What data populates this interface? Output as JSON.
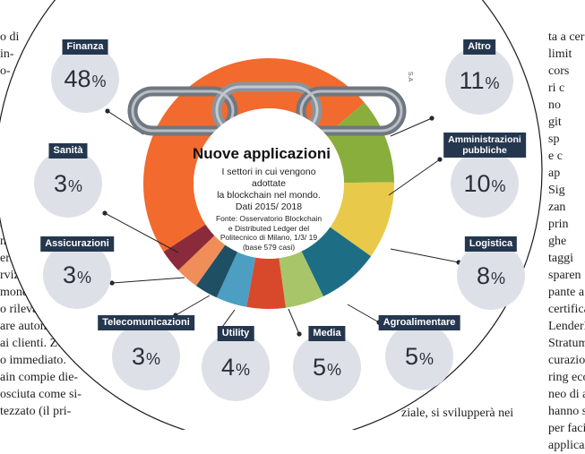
{
  "chart_data": {
    "type": "pie",
    "title": "Nuove applicazioni",
    "subtitle": "I settori in cui vengono adottate la blockchain nel mondo. Dati 2015/ 2018",
    "subtitle_lines": [
      "I settori in cui vengono adottate",
      "la blockchain nel mondo.",
      "Dati 2015/ 2018"
    ],
    "source_lines": [
      "Fonte: Osservatorio Blockchain",
      "e Distributed Ledger del",
      "Politecnico di Milano, 1/3/ 19",
      "(base 579 casi)"
    ],
    "credit": "S.A",
    "slices": [
      {
        "label": "Finanza",
        "value": 48,
        "display": "48",
        "color": "#f26a2e"
      },
      {
        "label": "Altro",
        "value": 11,
        "display": "11",
        "color": "#8aae3c"
      },
      {
        "label": "Amministrazioni pubbliche",
        "label_lines": [
          "Amministrazioni",
          "pubbliche"
        ],
        "value": 10,
        "display": "10",
        "color": "#e8c94a"
      },
      {
        "label": "Logistica",
        "value": 8,
        "display": "8",
        "color": "#1d6e85"
      },
      {
        "label": "Agroalimentare",
        "value": 5,
        "display": "5",
        "color": "#a8c56a"
      },
      {
        "label": "Media",
        "value": 5,
        "display": "5",
        "color": "#d8492b"
      },
      {
        "label": "Utility",
        "value": 4,
        "display": "4",
        "color": "#4c9ec2"
      },
      {
        "label": "Telecomunicazioni",
        "value": 3,
        "display": "3",
        "color": "#1f4f63"
      },
      {
        "label": "Assicurazioni",
        "value": 3,
        "display": "3",
        "color": "#f08e5a"
      },
      {
        "label": "Sanità",
        "value": 3,
        "display": "3",
        "color": "#8a2a3a"
      }
    ],
    "unit": "%"
  },
  "newsprint": {
    "left": [
      "o di",
      "in-",
      "o-",
      "",
      "",
      "",
      "",
      "",
      "",
      "a",
      "la",
      "a. Il",
      "non",
      "ermi-",
      "rvizio è",
      "mondiale",
      "o rilevare al-",
      "are automati-",
      "ai clienti. Zero",
      "o immediato.",
      "ain compie die-",
      "osciuta come si-",
      "tezzato (il pri-"
    ],
    "right": [
      "ta a cer",
      "limit",
      "cors",
      "ri c",
      "no",
      "git",
      "sp",
      "e c",
      "ap",
      "Sig",
      "zan",
      "prin",
      "ghe",
      "taggi",
      "sparen",
      "pante a",
      "certificar",
      "LenderBot",
      "Stratumn, è",
      "curazione su blo",
      "ring economy, con",
      "neo di appartamen",
      "hanno sperimenta",
      "per facilitare il lea",
      "applicazione è il tr"
    ],
    "bottom": "ziale,   si   svilupperà   nei"
  }
}
